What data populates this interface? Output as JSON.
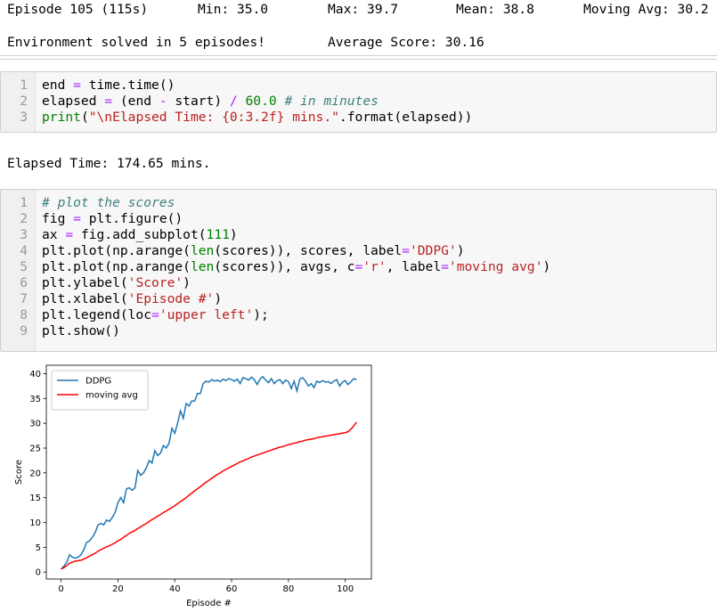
{
  "outputs": {
    "episode": "Episode 105 (115s)",
    "min": "Min: 35.0",
    "max": "Max: 39.7",
    "mean": "Mean: 38.8",
    "moving": "Moving Avg: 30.2",
    "solved": "Environment solved in 5 episodes!",
    "average": "Average Score: 30.16",
    "elapsed": "Elapsed Time: 174.65 mins."
  },
  "cells": [
    {
      "lines": [
        {
          "n": 1,
          "tokens": [
            [
              "end ",
              "n"
            ],
            [
              "=",
              "o"
            ],
            [
              " time.time()",
              "n"
            ]
          ]
        },
        {
          "n": 2,
          "tokens": [
            [
              "elapsed ",
              "n"
            ],
            [
              "=",
              "o"
            ],
            [
              " (end ",
              "n"
            ],
            [
              "-",
              "o"
            ],
            [
              " start) ",
              "n"
            ],
            [
              "/",
              "o"
            ],
            [
              " ",
              "n"
            ],
            [
              "60.0",
              "num"
            ],
            [
              " ",
              "n"
            ],
            [
              "# in minutes",
              "c"
            ]
          ]
        },
        {
          "n": 3,
          "tokens": [
            [
              "print",
              "b"
            ],
            [
              "(",
              "n"
            ],
            [
              "\"\\nElapsed Time: {0:3.2f} mins.\"",
              "s"
            ],
            [
              ".format(elapsed))",
              "n"
            ]
          ]
        }
      ]
    },
    {
      "lines": [
        {
          "n": 1,
          "tokens": [
            [
              "# plot the scores",
              "c"
            ]
          ]
        },
        {
          "n": 2,
          "tokens": [
            [
              "fig ",
              "n"
            ],
            [
              "=",
              "o"
            ],
            [
              " plt.figure()",
              "n"
            ]
          ]
        },
        {
          "n": 3,
          "tokens": [
            [
              "ax ",
              "n"
            ],
            [
              "=",
              "o"
            ],
            [
              " fig.add_subplot(",
              "n"
            ],
            [
              "111",
              "num"
            ],
            [
              ")",
              "n"
            ]
          ]
        },
        {
          "n": 4,
          "tokens": [
            [
              "plt.plot(np.arange(",
              "n"
            ],
            [
              "len",
              "b"
            ],
            [
              "(scores)), scores, label",
              "n"
            ],
            [
              "=",
              "o"
            ],
            [
              "'DDPG'",
              "s"
            ],
            [
              ")",
              "n"
            ]
          ]
        },
        {
          "n": 5,
          "tokens": [
            [
              "plt.plot(np.arange(",
              "n"
            ],
            [
              "len",
              "b"
            ],
            [
              "(scores)), avgs, c",
              "n"
            ],
            [
              "=",
              "o"
            ],
            [
              "'r'",
              "s"
            ],
            [
              ", label",
              "n"
            ],
            [
              "=",
              "o"
            ],
            [
              "'moving avg'",
              "s"
            ],
            [
              ")",
              "n"
            ]
          ]
        },
        {
          "n": 6,
          "tokens": [
            [
              "plt.ylabel(",
              "n"
            ],
            [
              "'Score'",
              "s"
            ],
            [
              ")",
              "n"
            ]
          ]
        },
        {
          "n": 7,
          "tokens": [
            [
              "plt.xlabel(",
              "n"
            ],
            [
              "'Episode #'",
              "s"
            ],
            [
              ")",
              "n"
            ]
          ]
        },
        {
          "n": 8,
          "tokens": [
            [
              "plt.legend(loc",
              "n"
            ],
            [
              "=",
              "o"
            ],
            [
              "'upper left'",
              "s"
            ],
            [
              ");",
              "n"
            ]
          ]
        },
        {
          "n": 9,
          "tokens": [
            [
              "plt.show()",
              "n"
            ]
          ]
        }
      ]
    }
  ],
  "chart_data": {
    "type": "line",
    "xlabel": "Episode #",
    "ylabel": "Score",
    "legend": "upper left",
    "xlim": [
      -5.2,
      109.2
    ],
    "ylim": [
      -1.4,
      41.7
    ],
    "xticks": [
      0,
      20,
      40,
      60,
      80,
      100
    ],
    "yticks": [
      0,
      5,
      10,
      15,
      20,
      25,
      30,
      35,
      40
    ],
    "x": [
      0,
      1,
      2,
      3,
      4,
      5,
      6,
      7,
      8,
      9,
      10,
      11,
      12,
      13,
      14,
      15,
      16,
      17,
      18,
      19,
      20,
      21,
      22,
      23,
      24,
      25,
      26,
      27,
      28,
      29,
      30,
      31,
      32,
      33,
      34,
      35,
      36,
      37,
      38,
      39,
      40,
      41,
      42,
      43,
      44,
      45,
      46,
      47,
      48,
      49,
      50,
      51,
      52,
      53,
      54,
      55,
      56,
      57,
      58,
      59,
      60,
      61,
      62,
      63,
      64,
      65,
      66,
      67,
      68,
      69,
      70,
      71,
      72,
      73,
      74,
      75,
      76,
      77,
      78,
      79,
      80,
      81,
      82,
      83,
      84,
      85,
      86,
      87,
      88,
      89,
      90,
      91,
      92,
      93,
      94,
      95,
      96,
      97,
      98,
      99,
      100,
      101,
      102,
      103,
      104
    ],
    "series": [
      {
        "name": "DDPG",
        "color": "#1f77b4",
        "values": [
          0.6,
          1.2,
          2.0,
          3.5,
          3.0,
          2.8,
          3.0,
          3.5,
          4.5,
          6.0,
          6.3,
          7.0,
          8.0,
          9.5,
          9.8,
          9.5,
          10.5,
          10.2,
          11.0,
          12.0,
          14.0,
          15.0,
          14.0,
          16.8,
          17.0,
          16.5,
          17.0,
          20.5,
          19.5,
          20.0,
          21.0,
          22.5,
          22.0,
          24.5,
          23.5,
          24.0,
          25.5,
          25.0,
          26.0,
          29.0,
          28.0,
          30.0,
          32.5,
          31.0,
          34.0,
          33.5,
          34.5,
          34.5,
          36.0,
          36.0,
          38.0,
          38.5,
          38.3,
          38.8,
          38.5,
          38.7,
          38.4,
          38.9,
          38.6,
          39.0,
          38.8,
          38.5,
          38.9,
          38.0,
          39.2,
          39.0,
          38.7,
          39.3,
          38.8,
          37.8,
          38.9,
          39.4,
          38.7,
          38.2,
          39.0,
          38.0,
          38.6,
          38.8,
          38.0,
          38.7,
          38.4,
          37.0,
          38.5,
          36.5,
          38.9,
          39.2,
          38.5,
          37.5,
          38.0,
          37.2,
          38.5,
          38.2,
          38.6,
          38.3,
          38.4,
          38.0,
          38.5,
          38.8,
          37.5,
          38.3,
          38.6,
          37.8,
          38.4,
          39.0,
          38.8
        ]
      },
      {
        "name": "moving avg",
        "color": "#ff0000",
        "values": [
          0.6,
          0.9,
          1.3,
          1.8,
          2.0,
          2.2,
          2.3,
          2.4,
          2.6,
          2.9,
          3.2,
          3.5,
          3.8,
          4.2,
          4.5,
          4.8,
          5.1,
          5.3,
          5.6,
          5.9,
          6.3,
          6.6,
          7.0,
          7.4,
          7.8,
          8.1,
          8.4,
          8.8,
          9.1,
          9.5,
          9.8,
          10.2,
          10.6,
          10.9,
          11.3,
          11.6,
          12.0,
          12.3,
          12.7,
          13.0,
          13.4,
          13.8,
          14.2,
          14.6,
          15.0,
          15.5,
          15.9,
          16.4,
          16.8,
          17.2,
          17.7,
          18.1,
          18.5,
          18.9,
          19.3,
          19.7,
          20.0,
          20.4,
          20.7,
          21.0,
          21.3,
          21.6,
          21.9,
          22.2,
          22.4,
          22.7,
          22.9,
          23.2,
          23.4,
          23.6,
          23.8,
          24.0,
          24.2,
          24.4,
          24.6,
          24.8,
          25.0,
          25.2,
          25.3,
          25.5,
          25.7,
          25.8,
          26.0,
          26.1,
          26.3,
          26.4,
          26.6,
          26.7,
          26.8,
          26.9,
          27.1,
          27.2,
          27.3,
          27.4,
          27.5,
          27.6,
          27.7,
          27.8,
          27.9,
          28.0,
          28.1,
          28.3,
          28.8,
          29.5,
          30.2
        ]
      }
    ]
  }
}
